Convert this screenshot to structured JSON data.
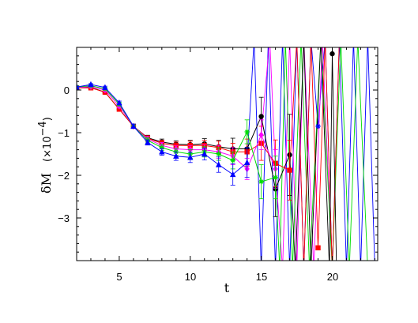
{
  "chart_data": {
    "type": "line",
    "xlabel": "t",
    "ylabel": "δM",
    "ylabel_unit": "(×10",
    "ylabel_unit_exp": "−4",
    "ylabel_unit_close": ")",
    "xlim": [
      2,
      23.2
    ],
    "ylim": [
      -4.0,
      1.0
    ],
    "xticks": [
      5,
      10,
      15,
      20
    ],
    "yticks": [
      0,
      -1,
      -2,
      -3
    ],
    "xtick_labels": [
      "5",
      "10",
      "15",
      "20"
    ],
    "ytick_labels": [
      "0",
      "−1",
      "−2",
      "−3"
    ],
    "grid": false,
    "legend": "none",
    "series": [
      {
        "color": "#000000",
        "marker": "circle",
        "x": [
          2,
          3,
          4,
          5,
          6,
          7,
          8,
          9,
          10,
          11,
          12,
          13,
          14,
          15,
          16,
          17
        ],
        "y": [
          0.06,
          0.06,
          -0.05,
          -0.45,
          -0.85,
          -1.12,
          -1.22,
          -1.27,
          -1.28,
          -1.26,
          -1.33,
          -1.38,
          -1.38,
          -0.62,
          -2.32,
          -1.52
        ],
        "err": [
          0.02,
          0.02,
          0.03,
          0.04,
          0.05,
          0.06,
          0.07,
          0.08,
          0.1,
          0.12,
          0.15,
          0.25,
          0.4,
          0.45,
          0.65,
          0.95
        ]
      },
      {
        "color": "#ff0000",
        "marker": "square",
        "x": [
          2,
          3,
          4,
          5,
          6,
          7,
          8,
          9,
          10,
          11,
          12,
          13,
          14,
          15,
          16,
          17
        ],
        "y": [
          0.05,
          0.05,
          -0.05,
          -0.45,
          -0.85,
          -1.13,
          -1.25,
          -1.3,
          -1.3,
          -1.3,
          -1.35,
          -1.45,
          -1.45,
          -1.25,
          -1.72,
          -1.88
        ],
        "err": [
          0.02,
          0.02,
          0.03,
          0.04,
          0.05,
          0.06,
          0.07,
          0.08,
          0.1,
          0.12,
          0.15,
          0.2,
          0.3,
          0.4,
          0.55,
          0.7
        ]
      },
      {
        "color": "#ff00ff",
        "marker": "diamond",
        "x": [
          2,
          3,
          4,
          5,
          6,
          7,
          8,
          9,
          10,
          11,
          12,
          13,
          14,
          15,
          16
        ],
        "y": [
          0.06,
          0.08,
          0.0,
          -0.38,
          -0.85,
          -1.15,
          -1.3,
          -1.38,
          -1.4,
          -1.4,
          -1.45,
          -1.55,
          -1.85,
          -1.05,
          -1.85
        ],
        "err": [
          0.02,
          0.02,
          0.03,
          0.04,
          0.05,
          0.06,
          0.07,
          0.08,
          0.1,
          0.12,
          0.15,
          0.2,
          0.25,
          0.35,
          0.45
        ]
      },
      {
        "color": "#00dd00",
        "marker": "star",
        "x": [
          2,
          3,
          4,
          5,
          6,
          7,
          8,
          9,
          10,
          11,
          12,
          13,
          14,
          15,
          16
        ],
        "y": [
          0.07,
          0.1,
          0.03,
          -0.33,
          -0.85,
          -1.18,
          -1.35,
          -1.45,
          -1.5,
          -1.45,
          -1.5,
          -1.65,
          -0.98,
          -2.15,
          -2.05
        ],
        "err": [
          0.02,
          0.02,
          0.03,
          0.04,
          0.05,
          0.06,
          0.07,
          0.08,
          0.1,
          0.12,
          0.15,
          0.2,
          0.28,
          0.4,
          0.5
        ]
      },
      {
        "color": "#0000ff",
        "marker": "triangle",
        "x": [
          2,
          3,
          4,
          5,
          6,
          7,
          8,
          9,
          10,
          11,
          12,
          13,
          14
        ],
        "y": [
          0.07,
          0.13,
          0.06,
          -0.3,
          -0.85,
          -1.23,
          -1.45,
          -1.55,
          -1.58,
          -1.5,
          -1.75,
          -1.98,
          -1.7
        ],
        "err": [
          0.02,
          0.02,
          0.03,
          0.04,
          0.05,
          0.06,
          0.08,
          0.1,
          0.12,
          0.14,
          0.18,
          0.25,
          0.35
        ]
      }
    ],
    "noisy_tail": [
      {
        "color": "#0000ff",
        "x": [
          14,
          14.5,
          15,
          15.5,
          16,
          16.5,
          17,
          17.5,
          18,
          18.5,
          19,
          19.5,
          20,
          20.5,
          21,
          21.5,
          22,
          22.5,
          23
        ],
        "y": [
          -1.7,
          1.2,
          -4.2,
          1.2,
          -4.2,
          1.2,
          -4.2,
          1.2,
          -4.2,
          1.2,
          -0.85,
          1.2,
          -4.2,
          1.2,
          -4.2,
          1.2,
          -4.2,
          1.2,
          -4.2
        ]
      },
      {
        "color": "#ff00ff",
        "x": [
          15,
          15.6,
          16,
          16.5,
          17,
          17.5,
          18,
          18.7,
          19.3,
          20
        ],
        "y": [
          -1.05,
          1.2,
          -1.85,
          -4.2,
          1.2,
          -4.2,
          1.2,
          -4.2,
          1.2,
          -4.2
        ]
      },
      {
        "color": "#00dd00",
        "x": [
          16,
          16.3,
          16.7,
          17.2,
          17.8,
          18.4,
          19.2,
          20,
          20.6,
          21.2,
          21.8,
          22.5
        ],
        "y": [
          -2.05,
          -4.2,
          1.2,
          -4.2,
          1.2,
          -4.2,
          1.2,
          -4.2,
          1.2,
          -4.2,
          1.2,
          -4.2
        ]
      },
      {
        "color": "#ff0000",
        "x": [
          17,
          17.5,
          18,
          18.5,
          19,
          19.5,
          20,
          20.5
        ],
        "y": [
          -1.88,
          1.2,
          -4.2,
          1.2,
          -3.7,
          1.2,
          -4.2,
          1.2
        ]
      },
      {
        "color": "#000000",
        "x": [
          17,
          17.4,
          18,
          18.5,
          19.2,
          19.8,
          20,
          20.3
        ],
        "y": [
          -1.52,
          -4.2,
          1.2,
          -4.2,
          1.2,
          -4.2,
          0.85,
          -4.2
        ]
      }
    ],
    "tail_markers": [
      {
        "color": "#0000ff",
        "marker": "star",
        "x": 19,
        "y": -0.85
      },
      {
        "color": "#ff0000",
        "marker": "square",
        "x": 19,
        "y": -3.7
      },
      {
        "color": "#000000",
        "marker": "circle",
        "x": 20,
        "y": 0.85
      }
    ]
  }
}
